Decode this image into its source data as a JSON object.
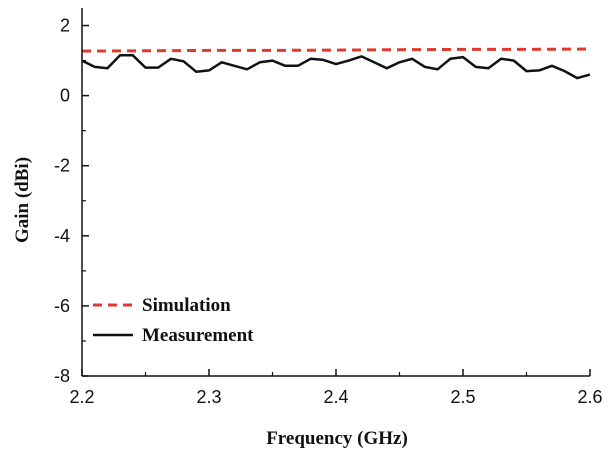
{
  "chart_data": {
    "type": "line",
    "title": "",
    "xlabel": "Frequency (GHz)",
    "ylabel": "Gain (dBi)",
    "xlim": [
      2.2,
      2.6
    ],
    "ylim": [
      -8,
      2.5
    ],
    "xticks": [
      2.2,
      2.3,
      2.4,
      2.5,
      2.6
    ],
    "xtick_labels": [
      "2.2",
      "2.3",
      "2.4",
      "2.5",
      "2.6"
    ],
    "yticks": [
      -8,
      -6,
      -4,
      -2,
      0,
      2
    ],
    "ytick_labels": [
      "-8",
      "-6",
      "-4",
      "-2",
      "0",
      "2"
    ],
    "grid": false,
    "legend_position": "bottom-left",
    "series": [
      {
        "name": "Simulation",
        "color": "#e03a2e",
        "style": "dashed",
        "x": [
          2.2,
          2.25,
          2.3,
          2.35,
          2.4,
          2.45,
          2.5,
          2.55,
          2.6
        ],
        "y": [
          1.27,
          1.28,
          1.29,
          1.29,
          1.3,
          1.31,
          1.32,
          1.32,
          1.33
        ]
      },
      {
        "name": "Measurement",
        "color": "#111111",
        "style": "solid",
        "x": [
          2.2,
          2.21,
          2.22,
          2.23,
          2.24,
          2.25,
          2.26,
          2.27,
          2.28,
          2.29,
          2.3,
          2.31,
          2.32,
          2.33,
          2.34,
          2.35,
          2.36,
          2.37,
          2.38,
          2.39,
          2.4,
          2.41,
          2.42,
          2.43,
          2.44,
          2.45,
          2.46,
          2.47,
          2.48,
          2.49,
          2.5,
          2.51,
          2.52,
          2.53,
          2.54,
          2.55,
          2.56,
          2.57,
          2.58,
          2.59,
          2.6
        ],
        "y": [
          1.0,
          0.82,
          0.78,
          1.15,
          1.15,
          0.8,
          0.8,
          1.05,
          0.98,
          0.68,
          0.72,
          0.95,
          0.85,
          0.75,
          0.95,
          1.0,
          0.85,
          0.85,
          1.05,
          1.02,
          0.9,
          1.0,
          1.12,
          0.95,
          0.78,
          0.95,
          1.05,
          0.82,
          0.75,
          1.05,
          1.1,
          0.82,
          0.78,
          1.05,
          1.0,
          0.7,
          0.72,
          0.85,
          0.7,
          0.5,
          0.6
        ]
      }
    ]
  }
}
